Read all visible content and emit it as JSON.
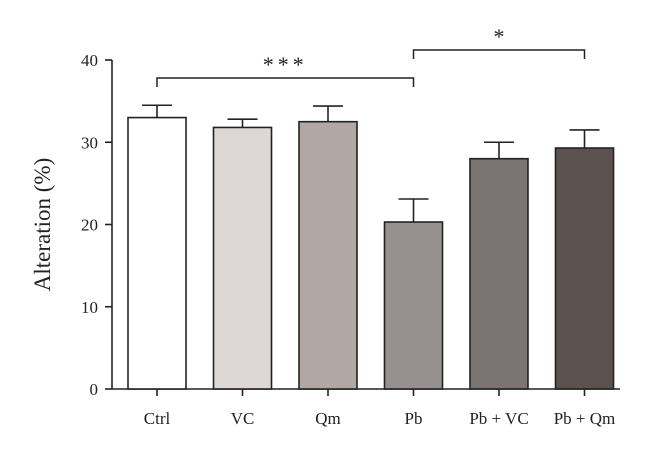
{
  "chart_data": {
    "type": "bar",
    "ylabel": "Alteration (%)",
    "xlabel": "",
    "ylim": [
      0,
      40
    ],
    "yticks": [
      0,
      10,
      20,
      30,
      40
    ],
    "categories": [
      "Ctrl",
      "VC",
      "Qm",
      "Pb",
      "Pb + VC",
      "Pb + Qm"
    ],
    "values": [
      33.0,
      31.8,
      32.5,
      20.3,
      28.0,
      29.3
    ],
    "errors": [
      1.5,
      1.0,
      1.9,
      2.8,
      2.0,
      2.2
    ],
    "bar_colors": [
      "#ffffff",
      "#ddd8d6",
      "#b1a8a5",
      "#969190",
      "#7c7472",
      "#5b524f"
    ],
    "grid": false,
    "significance": [
      {
        "from": "Ctrl",
        "to": "Pb",
        "label": "***"
      },
      {
        "from": "Pb",
        "to": "Pb + Qm",
        "label": "*"
      }
    ]
  }
}
